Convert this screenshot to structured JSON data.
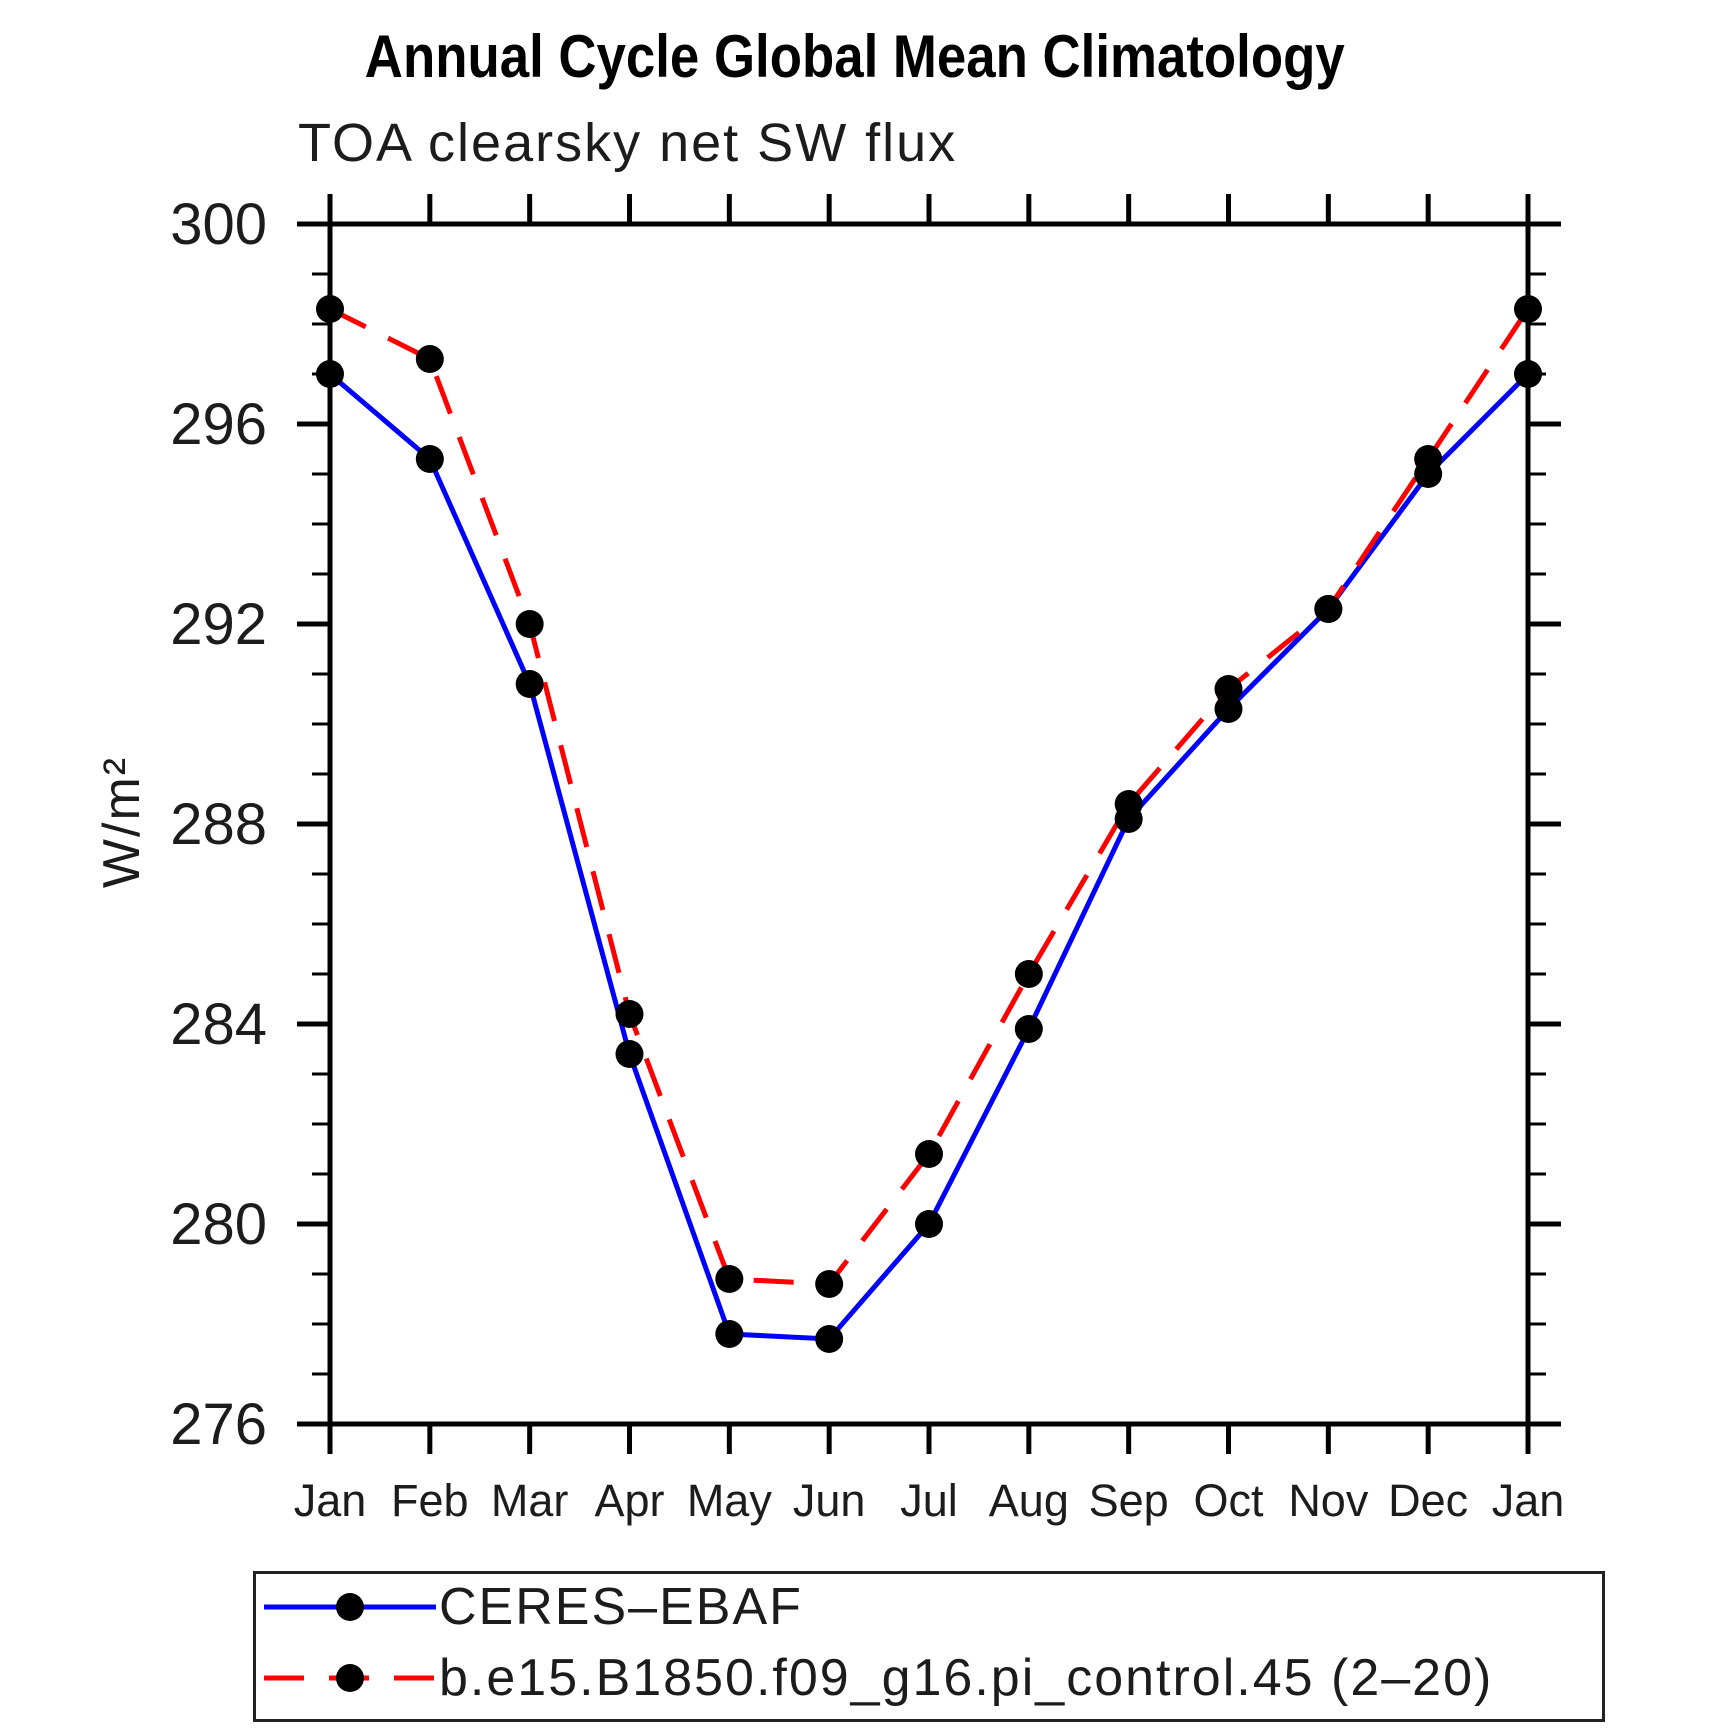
{
  "chart_data": {
    "type": "line",
    "title": "Annual Cycle Global Mean Climatology",
    "subtitle": "TOA clearsky net SW flux",
    "ylabel": "W/m²",
    "xlabel": "",
    "categories": [
      "Jan",
      "Feb",
      "Mar",
      "Apr",
      "May",
      "Jun",
      "Jul",
      "Aug",
      "Sep",
      "Oct",
      "Nov",
      "Dec",
      "Jan"
    ],
    "ylim": [
      276,
      300
    ],
    "ytick_major_step": 4,
    "ytick_minor_step": 1,
    "grid": false,
    "legend_position": "bottom-left",
    "axis_color": "#000000",
    "marker_color": "#000000",
    "series": [
      {
        "name": "CERES–EBAF",
        "color": "#0000ff",
        "line_style": "solid",
        "marker": "circle",
        "values": [
          297.0,
          295.3,
          290.8,
          283.4,
          277.8,
          277.7,
          280.0,
          283.9,
          288.1,
          290.3,
          292.3,
          295.0,
          297.0
        ]
      },
      {
        "name": "b.e15.B1850.f09_g16.pi_control.45 (2–20)",
        "color": "#ff0000",
        "line_style": "dashed",
        "marker": "circle",
        "values": [
          298.3,
          297.3,
          292.0,
          284.2,
          278.9,
          278.8,
          281.4,
          285.0,
          288.4,
          290.7,
          292.3,
          295.3,
          298.3
        ]
      }
    ]
  }
}
